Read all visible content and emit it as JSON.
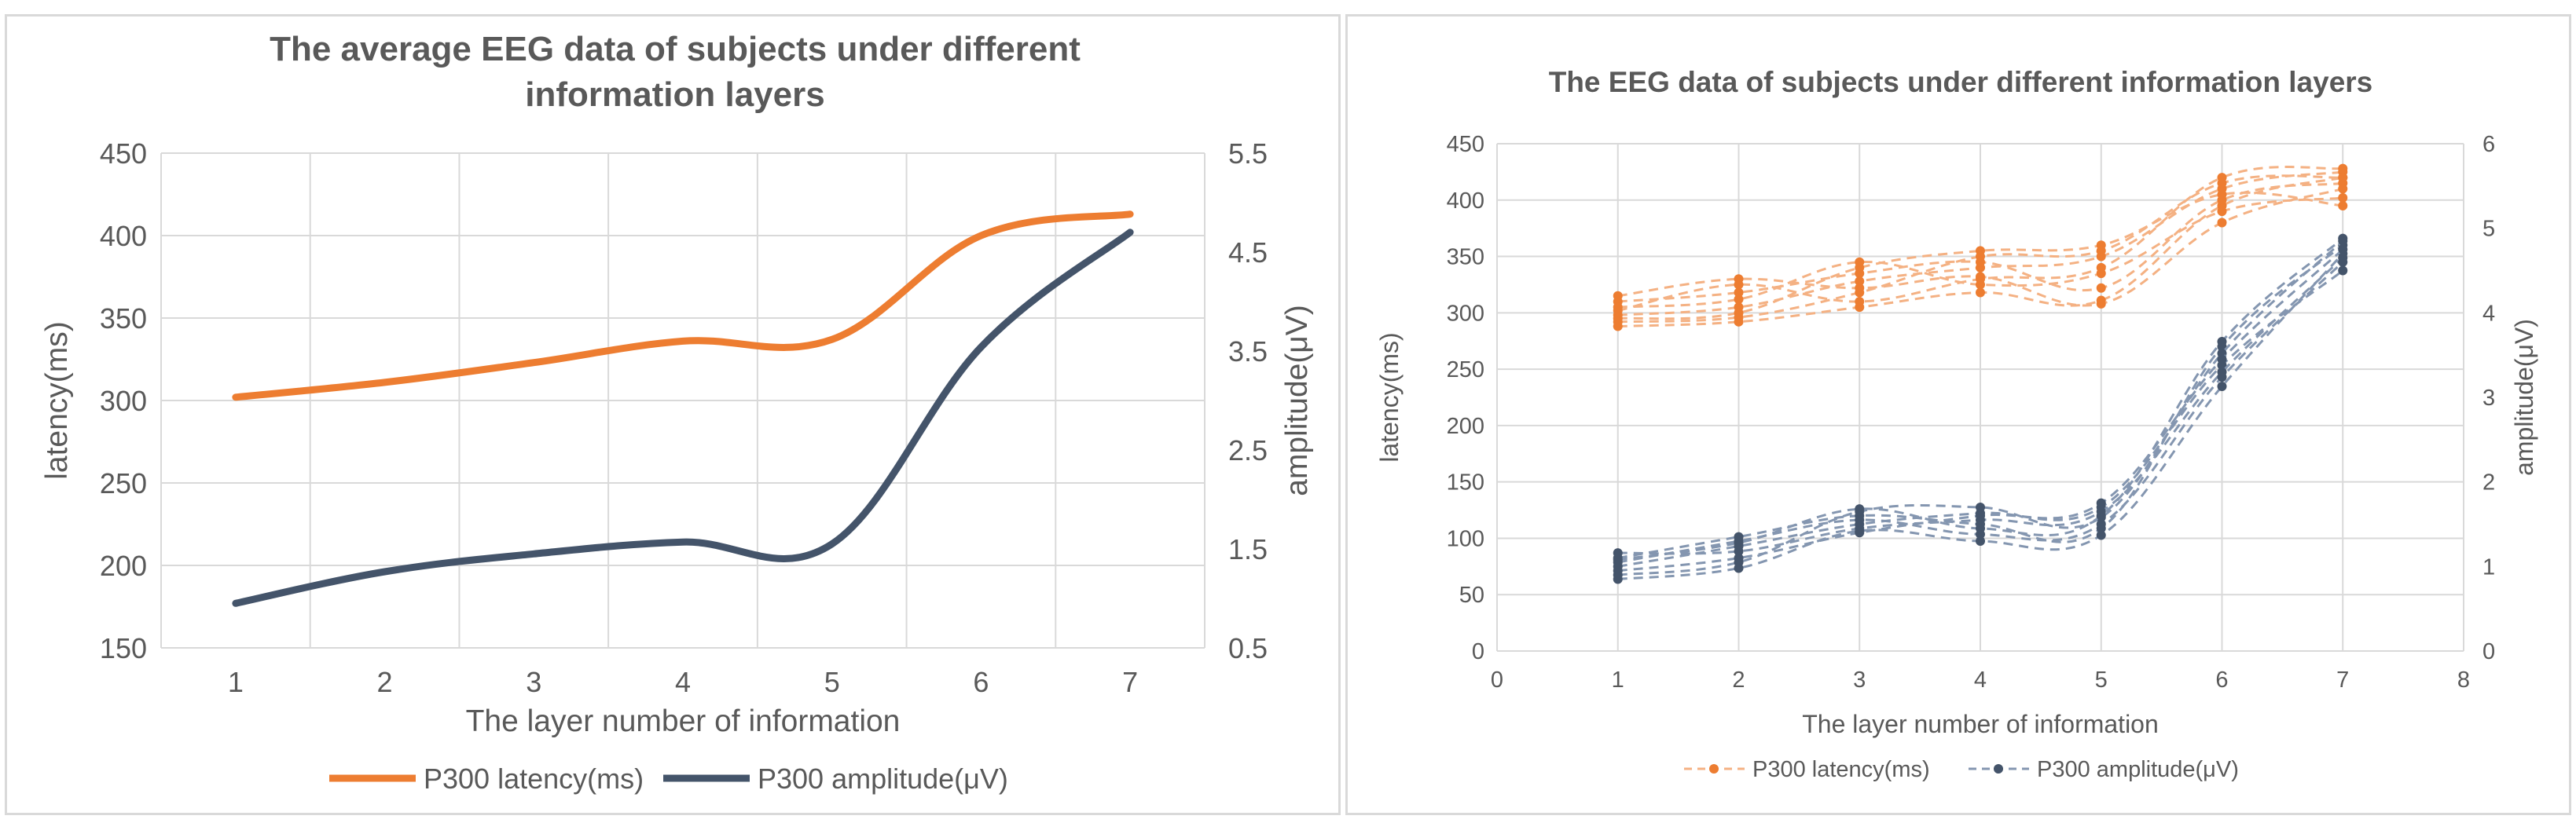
{
  "colors": {
    "latency": "#ed7d31",
    "amplitude": "#44546a",
    "grid": "#d9d9d9",
    "text": "#595959"
  },
  "chart_data": [
    {
      "type": "line",
      "title_line1": "The average EEG data of subjects under different",
      "title_line2": "information layers",
      "xlabel": "The layer number of information",
      "ylabel": "latency(ms)",
      "y2label": "amplitude(μV)",
      "categories": [
        "1",
        "2",
        "3",
        "4",
        "5",
        "6",
        "7"
      ],
      "ylim": [
        150,
        450
      ],
      "yticks": [
        "450",
        "400",
        "350",
        "300",
        "250",
        "200",
        "150"
      ],
      "y2lim": [
        0.5,
        5.5
      ],
      "y2ticks": [
        "5.5",
        "4.5",
        "3.5",
        "2.5",
        "1.5",
        "0.5"
      ],
      "series": [
        {
          "name": "P300 latency(ms)",
          "axis": "left",
          "values": [
            302,
            311,
            323,
            336,
            337,
            400,
            413
          ]
        },
        {
          "name": "P300 amplitude(μV)",
          "axis": "right",
          "values": [
            0.95,
            1.27,
            1.45,
            1.57,
            1.55,
            3.54,
            4.7
          ]
        }
      ],
      "legend": [
        "P300 latency(ms)",
        "P300 amplitude(μV)"
      ]
    },
    {
      "type": "scatter",
      "title": "The EEG data of subjects under different information layers",
      "xlabel": "The layer number of information",
      "ylabel": "latency(ms)",
      "y2label": "amplitude(μV)",
      "xlim": [
        0,
        8
      ],
      "xticks": [
        "0",
        "1",
        "2",
        "3",
        "4",
        "5",
        "6",
        "7",
        "8"
      ],
      "ylim": [
        0,
        450
      ],
      "yticks": [
        "450",
        "400",
        "350",
        "300",
        "250",
        "200",
        "150",
        "100",
        "50",
        "0"
      ],
      "y2lim": [
        0,
        6
      ],
      "y2ticks": [
        "6",
        "5",
        "4",
        "3",
        "2",
        "1",
        "0"
      ],
      "latency_subjects": [
        [
          288,
          292,
          305,
          318,
          311,
          395,
          420
        ],
        [
          298,
          305,
          328,
          340,
          350,
          410,
          425
        ],
        [
          310,
          318,
          335,
          345,
          322,
          400,
          415
        ],
        [
          302,
          325,
          310,
          330,
          340,
          420,
          428
        ],
        [
          295,
          300,
          340,
          355,
          360,
          405,
          395
        ],
        [
          315,
          330,
          322,
          332,
          308,
          380,
          410
        ],
        [
          305,
          312,
          345,
          325,
          335,
          390,
          402
        ],
        [
          292,
          296,
          318,
          350,
          355,
          415,
          420
        ]
      ],
      "amplitude_subjects": [
        [
          0.85,
          0.98,
          1.42,
          1.3,
          1.37,
          3.13,
          4.7
        ],
        [
          1.0,
          1.24,
          1.5,
          1.63,
          1.7,
          3.38,
          4.5
        ],
        [
          1.1,
          1.35,
          1.6,
          1.5,
          1.45,
          3.6,
          4.8
        ],
        [
          1.16,
          1.18,
          1.45,
          1.55,
          1.65,
          3.3,
          4.65
        ],
        [
          0.9,
          1.05,
          1.65,
          1.7,
          1.58,
          3.52,
          4.85
        ],
        [
          1.05,
          1.3,
          1.55,
          1.38,
          1.5,
          3.24,
          4.6
        ],
        [
          0.95,
          1.1,
          1.4,
          1.6,
          1.75,
          3.45,
          4.75
        ],
        [
          1.08,
          1.28,
          1.68,
          1.45,
          1.6,
          3.66,
          4.88
        ]
      ],
      "legend": [
        "P300 latency(ms)",
        "P300 amplitude(μV)"
      ]
    }
  ]
}
